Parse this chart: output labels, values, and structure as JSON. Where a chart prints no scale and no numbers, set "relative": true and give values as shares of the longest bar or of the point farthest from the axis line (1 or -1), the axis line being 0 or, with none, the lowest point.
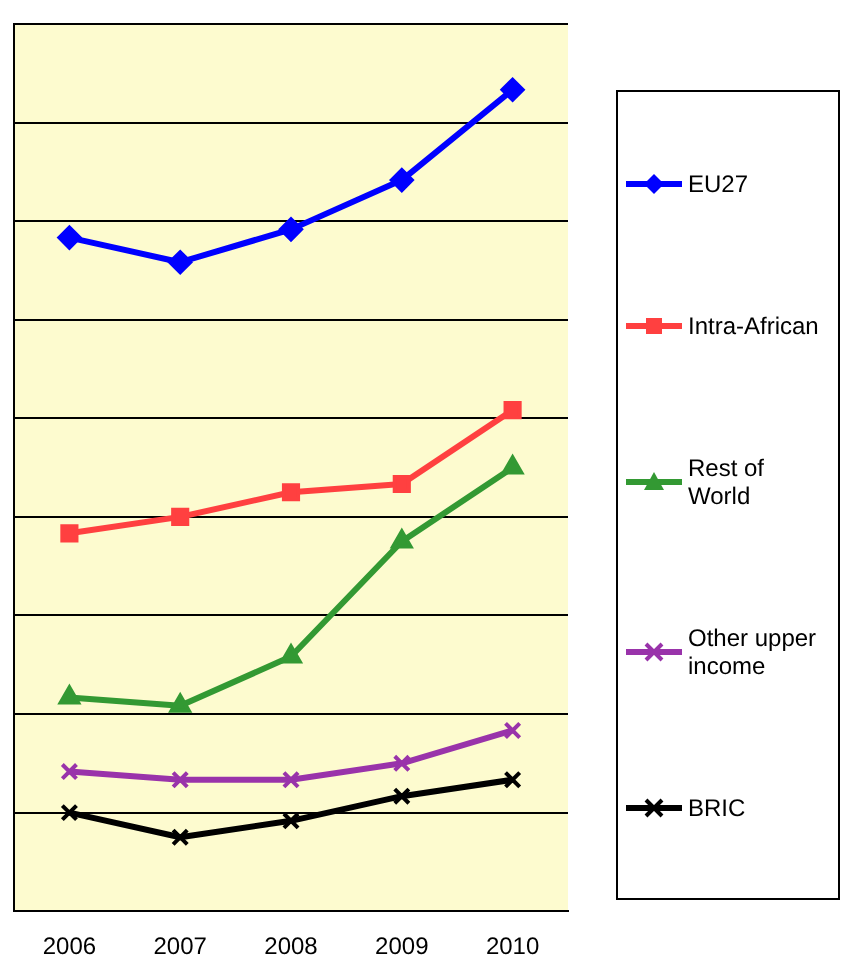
{
  "chart_data": {
    "type": "line",
    "relative": true,
    "categories": [
      "2006",
      "2007",
      "2008",
      "2009",
      "2010"
    ],
    "series": [
      {
        "name": "EU27",
        "color": "#0000ff",
        "marker": "diamond",
        "values": [
          0.82,
          0.79,
          0.83,
          0.89,
          1
        ]
      },
      {
        "name": "Intra-African",
        "color": "#ff4040",
        "marker": "square",
        "values": [
          0.46,
          0.48,
          0.51,
          0.52,
          0.61
        ]
      },
      {
        "name": "Rest of World",
        "color": "#339933",
        "marker": "triangle",
        "values": [
          0.26,
          0.25,
          0.31,
          0.45,
          0.54
        ]
      },
      {
        "name": "Other upper income",
        "color": "#9933aa",
        "marker": "cross",
        "values": [
          0.17,
          0.16,
          0.16,
          0.18,
          0.22
        ]
      },
      {
        "name": "BRIC",
        "color": "#000000",
        "marker": "cross",
        "values": [
          0.12,
          0.09,
          0.11,
          0.14,
          0.16
        ]
      }
    ],
    "grid": "y",
    "legend": "right"
  }
}
